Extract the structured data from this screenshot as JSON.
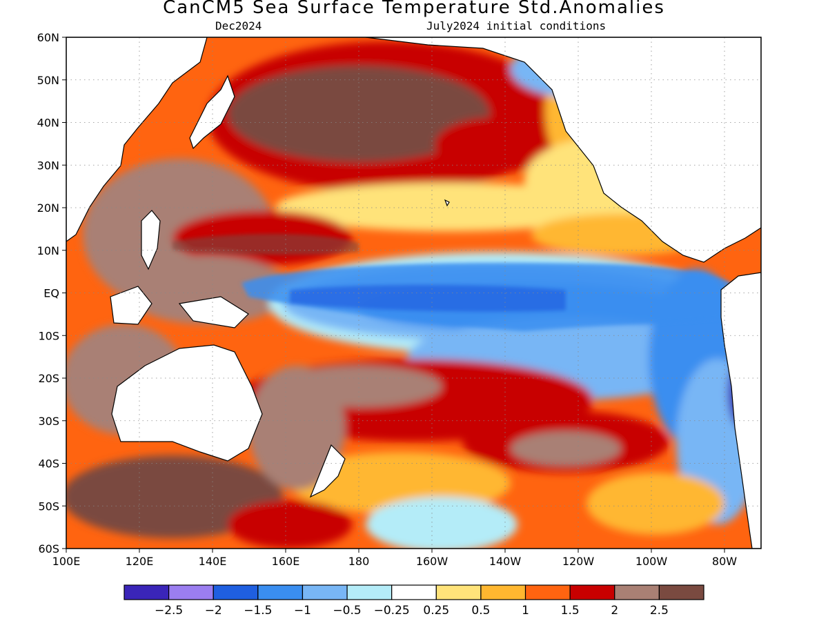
{
  "title": "CanCM5 Sea Surface Temperature Std.Anomalies",
  "subtitle_left": "Dec2024",
  "subtitle_right": "July2024 initial conditions",
  "map": {
    "lat_range": [
      -60,
      60
    ],
    "lon_range": [
      100,
      290
    ],
    "grid": true,
    "lat_labels": [
      "60N",
      "50N",
      "40N",
      "30N",
      "20N",
      "10N",
      "EQ",
      "10S",
      "20S",
      "30S",
      "40S",
      "50S",
      "60S"
    ],
    "lon_labels": [
      "100E",
      "120E",
      "140E",
      "160E",
      "180",
      "160W",
      "140W",
      "120W",
      "100W",
      "80W"
    ]
  },
  "colorbar": {
    "colors": [
      "#3a25b8",
      "#9b7ef0",
      "#1f5fe0",
      "#3a8ef0",
      "#78b6f5",
      "#b4ecf8",
      "#ffffff",
      "#ffe37a",
      "#ffb730",
      "#ff6410",
      "#c80000",
      "#a98074",
      "#7a4a40"
    ],
    "tick_labels": [
      "-2.5",
      "-2",
      "-1.5",
      "-1",
      "-0.5",
      "-0.25",
      "0.25",
      "0.5",
      "1",
      "1.5",
      "2",
      "2.5"
    ]
  }
}
